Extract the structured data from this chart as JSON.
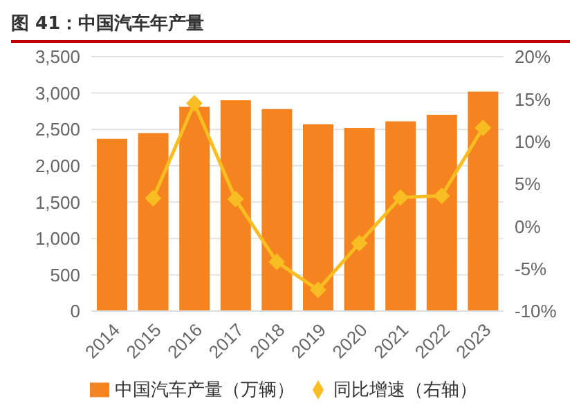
{
  "chart_data": {
    "type": "bar",
    "title": "图 41：中国汽车年产量",
    "categories": [
      "2014",
      "2015",
      "2016",
      "2017",
      "2018",
      "2019",
      "2020",
      "2021",
      "2022",
      "2023"
    ],
    "series": [
      {
        "name": "中国汽车产量（万辆）",
        "color": "#f5831f",
        "values": [
          2370,
          2450,
          2810,
          2900,
          2780,
          2570,
          2520,
          2610,
          2700,
          3020
        ]
      },
      {
        "name": "同比增速（右轴）",
        "type": "line",
        "axis": "y2",
        "color": "#f8bd22",
        "marker": "diamond",
        "values": [
          null,
          3.3,
          14.5,
          3.2,
          -4.2,
          -7.5,
          -2.0,
          3.4,
          3.6,
          11.6
        ]
      }
    ],
    "ylim": [
      0,
      3500
    ],
    "yticks": [
      0,
      {
        "value": 500,
        "label": "500"
      },
      {
        "value": 1000,
        "label": "1,000"
      },
      {
        "value": 1500,
        "label": "1,500"
      },
      {
        "value": 2000,
        "label": "2,000"
      },
      {
        "value": 2500,
        "label": "2,500"
      },
      {
        "value": 3000,
        "label": "3,000"
      },
      {
        "value": 3500,
        "label": "3,500"
      }
    ],
    "y2lim": [
      -10,
      20
    ],
    "y2ticks": [
      {
        "value": -10,
        "label": "-10%"
      },
      {
        "value": -5,
        "label": "-5%"
      },
      {
        "value": 0,
        "label": "0%"
      },
      {
        "value": 5,
        "label": "5%"
      },
      {
        "value": 10,
        "label": "10%"
      },
      {
        "value": 15,
        "label": "15%"
      },
      {
        "value": 20,
        "label": "20%"
      }
    ],
    "grid": "y",
    "legend": "bottom"
  }
}
